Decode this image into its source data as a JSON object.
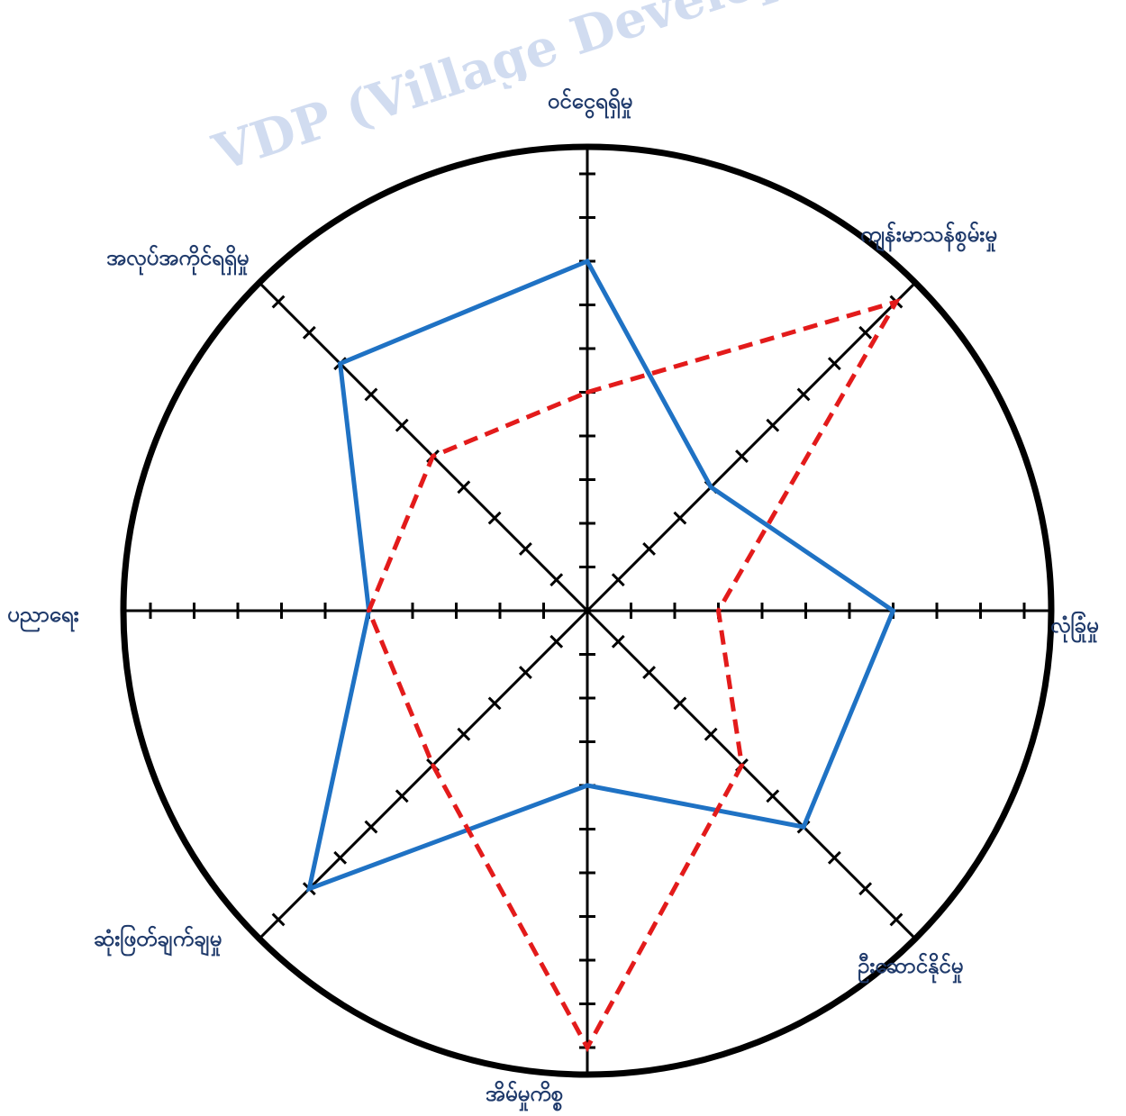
{
  "watermark": "VDP (Village Development Plan)",
  "chart_data": {
    "type": "radar",
    "axes": [
      "ဝင်ငွေရရှိမှု",
      "ကျန်းမာသန်စွမ်းမှု",
      "လုံခြုံမှု",
      "ဦးဆောင်နိုင်မှု",
      "အိမ်မှုကိစ္စ",
      "ဆုံးဖြတ်ချက်ချမှု",
      "ပညာရေး",
      "အလုပ်အကိုင်ရရှိမှု"
    ],
    "scale_max": 10,
    "ticks": 10,
    "series": [
      {
        "values": [
          8,
          4,
          7,
          7,
          4,
          9,
          5,
          8
        ],
        "color": "#1f72c4",
        "style": "solid"
      },
      {
        "values": [
          5,
          10,
          3,
          5,
          10,
          5,
          5,
          5
        ],
        "color": "#e31b1b",
        "style": "dashed"
      }
    ]
  }
}
